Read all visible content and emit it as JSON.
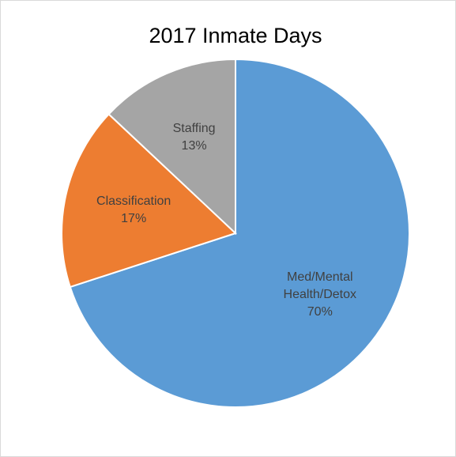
{
  "chart_data": {
    "type": "pie",
    "title": "2017 Inmate Days",
    "categories": [
      "Med/Mental Health/Detox",
      "Classification",
      "Staffing"
    ],
    "values": [
      70,
      17,
      13
    ],
    "value_labels": [
      "70%",
      "17%",
      "13%"
    ],
    "colors": [
      "#5b9bd5",
      "#ed7d31",
      "#a5a5a5"
    ]
  }
}
